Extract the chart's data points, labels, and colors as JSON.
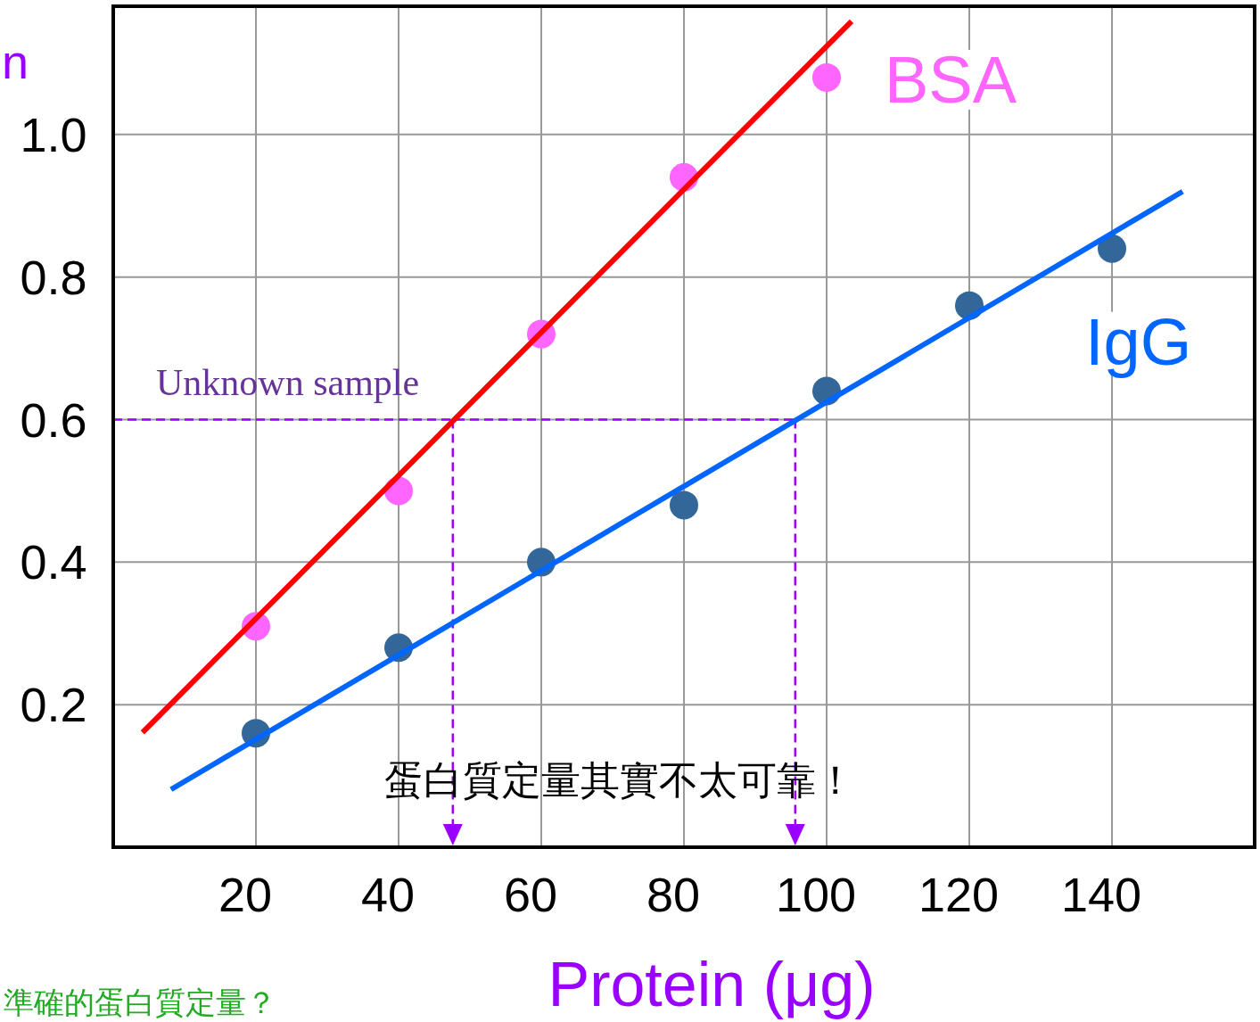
{
  "chart_data": {
    "type": "scatter",
    "xlabel": "Protein (μg)",
    "ylabel": "n",
    "xlim": [
      0,
      160
    ],
    "ylim": [
      0,
      1.18
    ],
    "xticks": [
      20,
      40,
      60,
      80,
      100,
      120,
      140
    ],
    "yticks": [
      0.2,
      0.4,
      0.6,
      0.8,
      {
        "value": 1,
        "label": "1.0"
      }
    ],
    "grid": true,
    "legend": false,
    "marker": "circle",
    "series": [
      {
        "name": "BSA",
        "color": "#ff66ff",
        "x": [
          20,
          40,
          60,
          80,
          100
        ],
        "values": [
          0.31,
          0.5,
          0.72,
          0.94,
          1.08
        ]
      },
      {
        "name": "IgG",
        "color": "#336699",
        "x": [
          20,
          40,
          60,
          80,
          100,
          120,
          140
        ],
        "values": [
          0.16,
          0.28,
          0.4,
          0.48,
          0.64,
          0.76,
          0.84
        ]
      },
      {
        "type": "line",
        "marker": "none",
        "color": "#ff0000",
        "x": [
          4.1,
          103.5
        ],
        "values": [
          0.161,
          1.159
        ]
      },
      {
        "type": "line",
        "marker": "none",
        "color": "#0066ff",
        "x": [
          8.1,
          149.9
        ],
        "values": [
          0.081,
          0.92
        ]
      }
    ],
    "ref_lines": [
      {
        "axis": "y",
        "value": 0.6,
        "label": "Unknown sample",
        "color": "#9900ff",
        "line_style": "dashed"
      },
      {
        "axis": "x",
        "value": 47.6,
        "color": "#9900ff",
        "line_style": "dashed"
      },
      {
        "axis": "x",
        "value": 95.6,
        "color": "#9900ff",
        "line_style": "dashed"
      }
    ],
    "annotations": [
      "蛋白質定量其實不太可靠！",
      "準確的蛋白質定量？"
    ]
  }
}
